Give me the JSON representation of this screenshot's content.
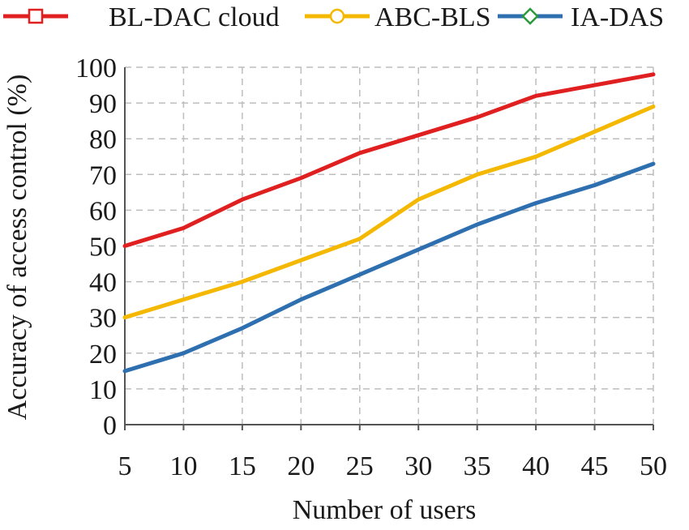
{
  "chart_data": {
    "type": "line",
    "title": "",
    "xlabel": "Number of users",
    "ylabel": "Accuracy of access control (%)",
    "x": [
      5,
      10,
      15,
      20,
      25,
      30,
      35,
      40,
      45,
      50
    ],
    "xlim": [
      5,
      50
    ],
    "ylim": [
      0,
      100
    ],
    "yticks": [
      0,
      10,
      20,
      30,
      40,
      50,
      60,
      70,
      80,
      90,
      100
    ],
    "grid": true,
    "legend_position": "top",
    "series": [
      {
        "name": "BL-DAC cloud",
        "color": "#e02020",
        "marker": "square",
        "values": [
          50,
          55,
          63,
          69,
          76,
          81,
          86,
          92,
          95,
          98
        ]
      },
      {
        "name": "ABC-BLS",
        "color": "#f5b800",
        "marker": "circle",
        "values": [
          30,
          35,
          40,
          46,
          52,
          63,
          70,
          75,
          82,
          89
        ]
      },
      {
        "name": "IA-DAS",
        "color": "#2e6fb0",
        "marker": "diamond",
        "values": [
          15,
          20,
          27,
          35,
          42,
          49,
          56,
          62,
          67,
          73
        ]
      }
    ]
  }
}
